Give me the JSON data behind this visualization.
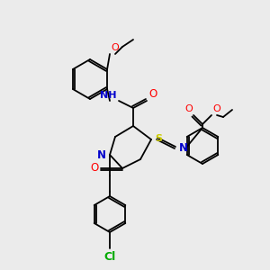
{
  "bg_color": "#ebebeb",
  "atom_colors": {
    "C": "#000000",
    "N": "#0000cc",
    "O": "#ff0000",
    "S": "#cccc00",
    "Cl": "#00aa00",
    "H": "#888888"
  },
  "figsize": [
    3.0,
    3.0
  ],
  "dpi": 100
}
